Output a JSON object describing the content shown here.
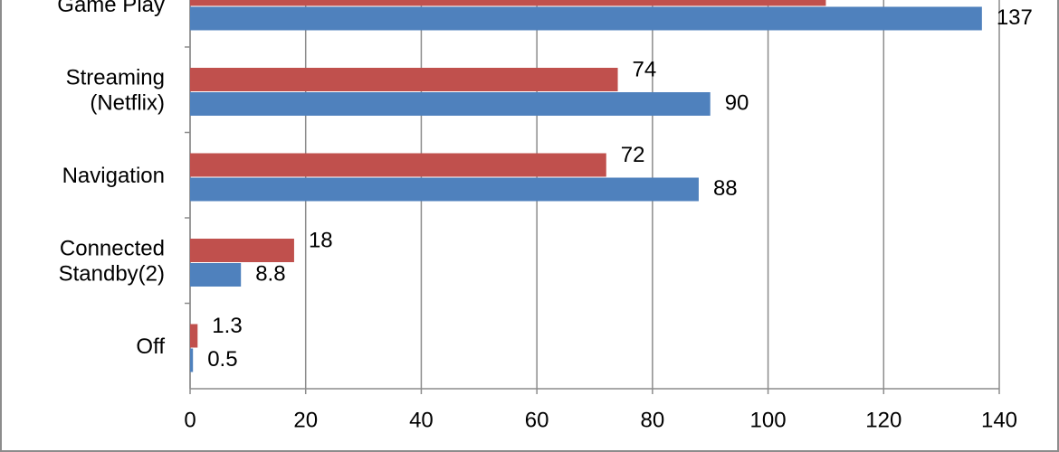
{
  "chart_data": {
    "type": "bar",
    "orientation": "horizontal",
    "categories": [
      "Game Play",
      "Streaming\n(Netflix)",
      "Navigation",
      "Connected\nStandby(2)",
      "Off"
    ],
    "series": [
      {
        "color": "#c0504d",
        "values": [
          110,
          74,
          72,
          18,
          1.3
        ]
      },
      {
        "color": "#4f81bd",
        "values": [
          137,
          90,
          88,
          8.8,
          0.5
        ]
      }
    ],
    "xlim": [
      0,
      140
    ],
    "xticks": [
      0,
      20,
      40,
      60,
      80,
      100,
      120,
      140
    ],
    "grid": true
  }
}
